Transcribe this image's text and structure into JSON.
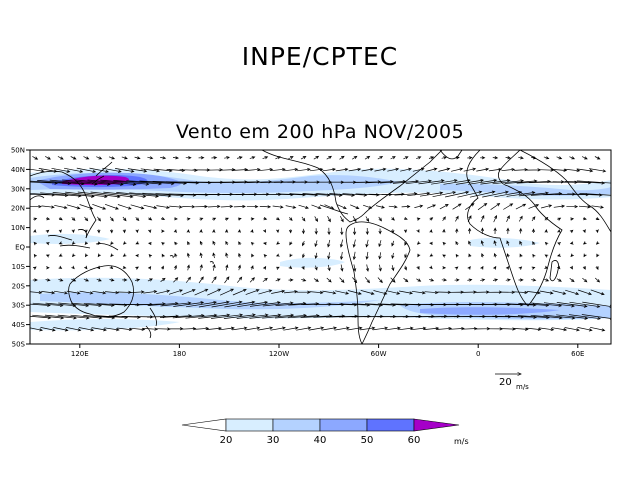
{
  "header": {
    "organization": "INPE/CPTEC",
    "map_title": "Vento em 200 hPa NOV/2005"
  },
  "map": {
    "lat_labels": [
      "50N",
      "40N",
      "30N",
      "20N",
      "10N",
      "EQ",
      "10S",
      "20S",
      "30S",
      "40S",
      "50S"
    ],
    "lon_labels": [
      "120E",
      "180",
      "120W",
      "60W",
      "0",
      "60E"
    ],
    "lat_range": [
      -50,
      50
    ],
    "lon_range": [
      80,
      430
    ]
  },
  "reference_vector": {
    "value": "20",
    "unit": "m/s"
  },
  "colorbar": {
    "ticks": [
      "20",
      "30",
      "40",
      "50",
      "60"
    ],
    "unit": "m/s",
    "colors": [
      "#ffffff",
      "#d8eeff",
      "#b4d2ff",
      "#8ca8ff",
      "#5f73ff",
      "#a500c8"
    ]
  }
}
